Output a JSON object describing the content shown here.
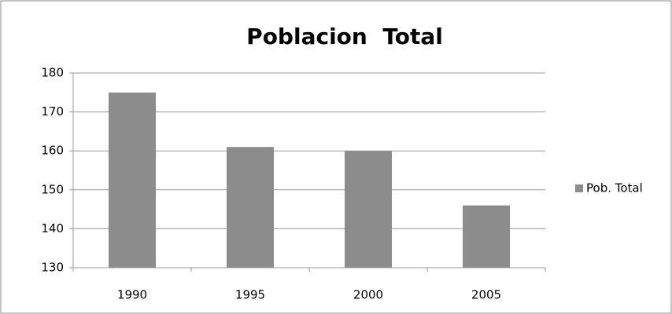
{
  "chart_data": {
    "type": "bar",
    "title": "Poblacion  Total",
    "categories": [
      "1990",
      "1995",
      "2000",
      "2005"
    ],
    "series": [
      {
        "name": "Pob. Total",
        "color": "#8c8c8c",
        "values": [
          175,
          161,
          160,
          146
        ]
      }
    ],
    "ylim": [
      130,
      180
    ],
    "yticks": [
      130,
      140,
      150,
      160,
      170,
      180
    ],
    "grid": true,
    "legend": "right"
  }
}
